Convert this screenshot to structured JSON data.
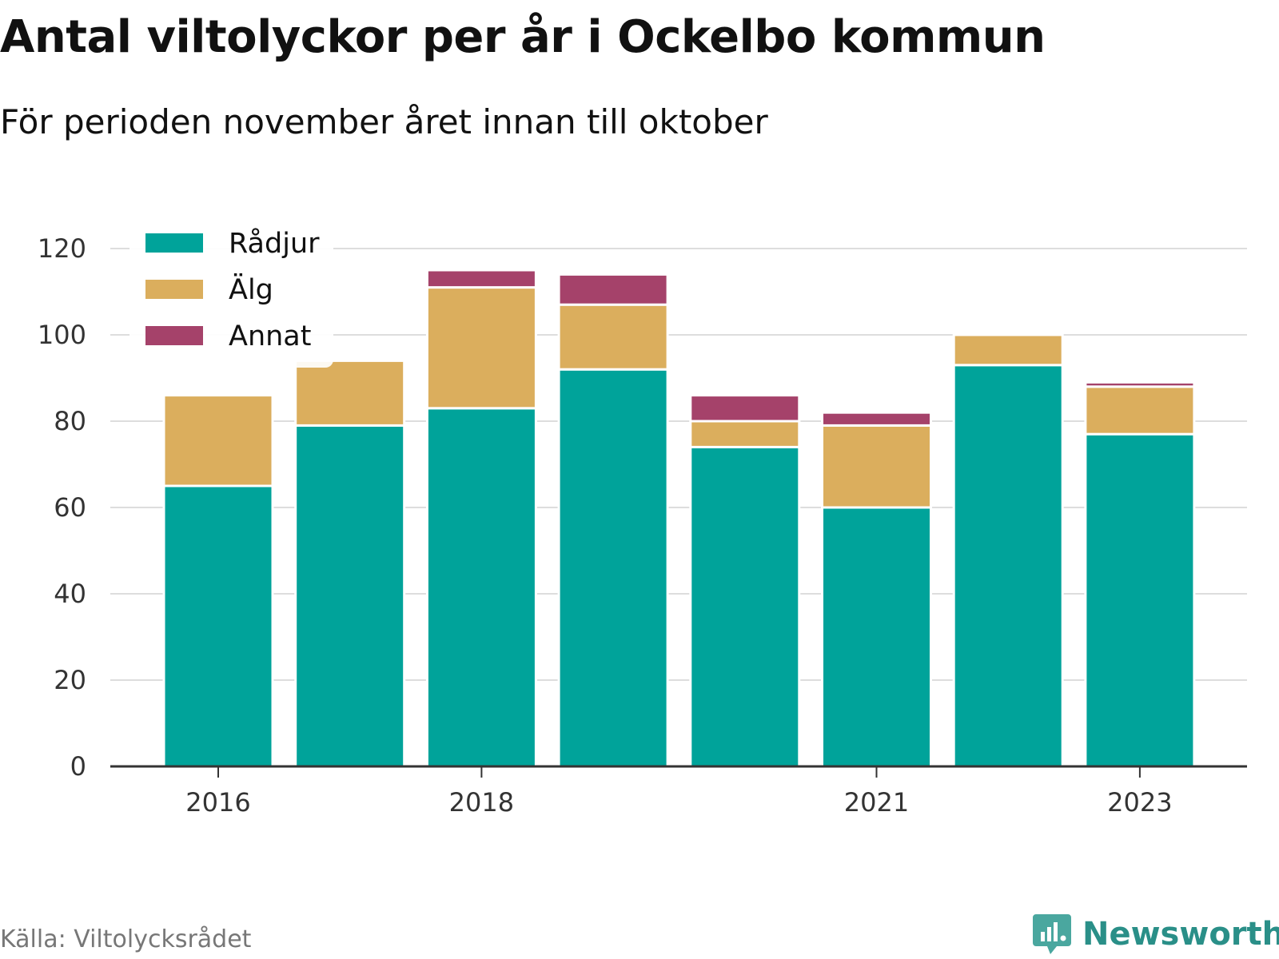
{
  "header": {
    "title": "Antal viltolyckor per år i Ockelbo kommun",
    "subtitle": "För perioden november året innan till oktober"
  },
  "footer": {
    "source": "Källa: Viltolycksrådet",
    "logo_text": "Newsworthy"
  },
  "chart_data": {
    "type": "bar",
    "stacked": true,
    "categories": [
      "2016",
      "2017",
      "2018",
      "2019",
      "2020",
      "2021",
      "2022",
      "2023"
    ],
    "x_tick_labels": [
      "2016",
      "",
      "2018",
      "",
      "",
      "2021",
      "",
      "2023"
    ],
    "series": [
      {
        "name": "Rådjur",
        "color": "#00a39a",
        "values": [
          65,
          79,
          83,
          92,
          74,
          60,
          93,
          77
        ]
      },
      {
        "name": "Älg",
        "color": "#dbae5d",
        "values": [
          21,
          15,
          28,
          15,
          6,
          19,
          7,
          11
        ]
      },
      {
        "name": "Annat",
        "color": "#a5426a",
        "values": [
          0,
          0,
          4,
          7,
          6,
          3,
          0,
          1
        ]
      }
    ],
    "ylim": [
      0,
      120
    ],
    "yticks": [
      0,
      20,
      40,
      60,
      80,
      100,
      120
    ],
    "grid": true,
    "legend_position": "top-left"
  }
}
